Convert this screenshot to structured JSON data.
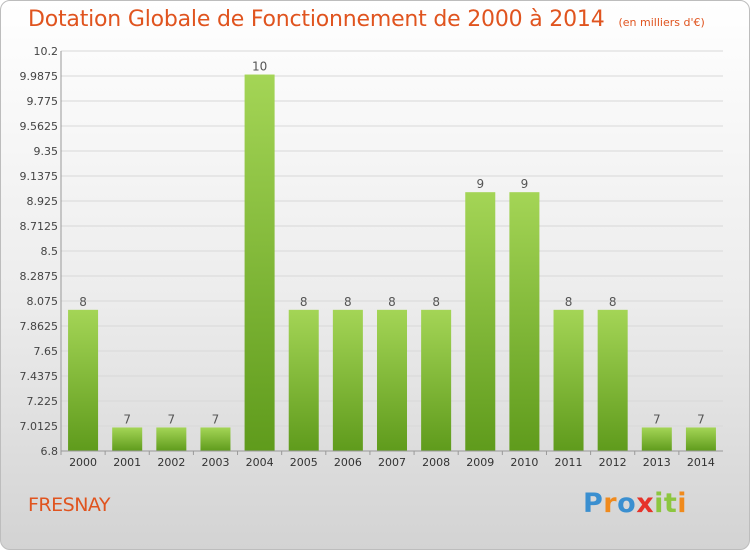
{
  "header": {
    "title": "Dotation Globale de Fonctionnement de 2000 à 2014",
    "subtitle": "(en milliers d'€)"
  },
  "footer": {
    "place": "FRESNAY",
    "logo_text": "Proxiti",
    "logo_colors": [
      "#3a8fd0",
      "#f08a1c",
      "#3a8fd0",
      "#e6332a",
      "#8cc63f",
      "#8cc63f",
      "#f08a1c"
    ]
  },
  "colors": {
    "bar_top": "#a4d556",
    "bar_bottom": "#5f9b1c",
    "grid": "#d8d8d8",
    "title": "#e0541f"
  },
  "chart_data": {
    "type": "bar",
    "title": "Dotation Globale de Fonctionnement de 2000 à 2014",
    "subtitle": "(en milliers d'€)",
    "xlabel": "",
    "ylabel": "",
    "categories": [
      "2000",
      "2001",
      "2002",
      "2003",
      "2004",
      "2005",
      "2006",
      "2007",
      "2008",
      "2009",
      "2010",
      "2011",
      "2012",
      "2013",
      "2014"
    ],
    "values": [
      8,
      7,
      7,
      7,
      10,
      8,
      8,
      8,
      8,
      9,
      9,
      8,
      8,
      7,
      7
    ],
    "ylim": [
      6.8,
      10.2
    ],
    "yticks": [
      "6.8",
      "7.0125",
      "7.225",
      "7.4375",
      "7.65",
      "7.8625",
      "8.075",
      "8.2875",
      "8.5",
      "8.7125",
      "8.925",
      "9.1375",
      "9.35",
      "9.5625",
      "9.775",
      "9.9875",
      "10.2"
    ],
    "grid": true,
    "legend": "none"
  }
}
